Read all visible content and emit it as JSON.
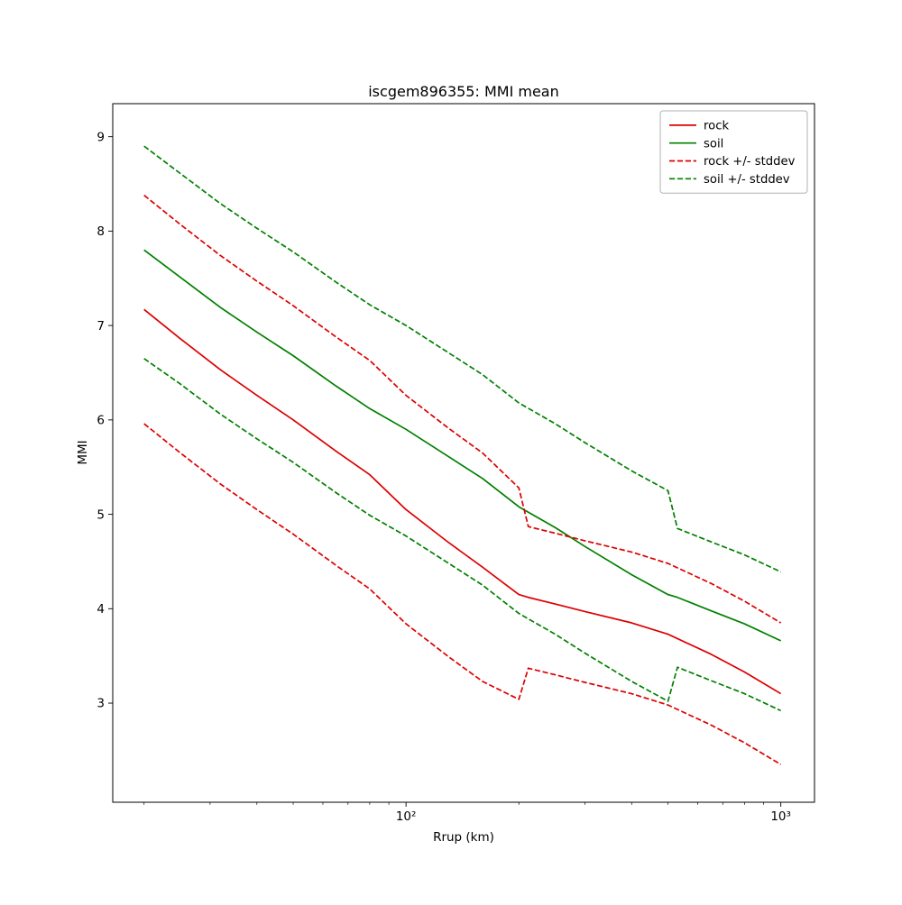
{
  "chart_data": {
    "type": "line",
    "title": "iscgem896355: MMI mean",
    "xlabel": "Rrup (km)",
    "ylabel": "MMI",
    "x_scale": "log",
    "y_scale": "linear",
    "xlim": [
      16.5,
      1230
    ],
    "ylim": [
      1.95,
      9.35
    ],
    "y_ticks": [
      3,
      4,
      5,
      6,
      7,
      8,
      9
    ],
    "x_ticks": [
      {
        "value": 100,
        "label": "10²"
      },
      {
        "value": 1000,
        "label": "10³"
      }
    ],
    "x_minor_ticks": [
      20,
      30,
      40,
      50,
      60,
      70,
      80,
      90,
      200,
      300,
      400,
      500,
      600,
      700,
      800,
      900
    ],
    "grid": false,
    "colors": {
      "rock": "#dd0000",
      "soil": "#008000"
    },
    "legend": {
      "position": "upper right",
      "entries": [
        {
          "label": "rock",
          "color": "#dd0000",
          "dashed": false
        },
        {
          "label": "soil",
          "color": "#008000",
          "dashed": false
        },
        {
          "label": "rock +/- stddev",
          "color": "#dd0000",
          "dashed": true
        },
        {
          "label": "soil +/- stddev",
          "color": "#008000",
          "dashed": true
        }
      ]
    },
    "series": [
      {
        "name": "rock",
        "color": "#dd0000",
        "dashed": false,
        "x": [
          20,
          25,
          32,
          40,
          50,
          65,
          80,
          100,
          130,
          160,
          200,
          212,
          250,
          300,
          400,
          500,
          650,
          800,
          1000
        ],
        "y": [
          7.17,
          6.86,
          6.53,
          6.26,
          6.0,
          5.67,
          5.42,
          5.05,
          4.7,
          4.44,
          4.15,
          4.12,
          4.05,
          3.97,
          3.85,
          3.73,
          3.52,
          3.33,
          3.1
        ]
      },
      {
        "name": "soil",
        "color": "#008000",
        "dashed": false,
        "x": [
          20,
          25,
          32,
          40,
          50,
          65,
          80,
          100,
          130,
          160,
          200,
          250,
          300,
          400,
          500,
          530,
          650,
          800,
          1000
        ],
        "y": [
          7.8,
          7.51,
          7.19,
          6.93,
          6.68,
          6.36,
          6.12,
          5.9,
          5.61,
          5.38,
          5.08,
          4.86,
          4.66,
          4.36,
          4.15,
          4.12,
          3.98,
          3.84,
          3.66
        ]
      },
      {
        "name": "rock plus stddev",
        "color": "#dd0000",
        "dashed": true,
        "x": [
          20,
          25,
          32,
          40,
          50,
          65,
          80,
          100,
          130,
          160,
          200,
          212,
          250,
          300,
          400,
          500,
          650,
          800,
          1000
        ],
        "y": [
          8.38,
          8.07,
          7.74,
          7.47,
          7.21,
          6.88,
          6.63,
          6.26,
          5.91,
          5.65,
          5.28,
          4.87,
          4.8,
          4.72,
          4.6,
          4.48,
          4.27,
          4.08,
          3.85
        ]
      },
      {
        "name": "rock minus stddev",
        "color": "#dd0000",
        "dashed": true,
        "x": [
          20,
          25,
          32,
          40,
          50,
          65,
          80,
          100,
          130,
          160,
          200,
          212,
          250,
          300,
          400,
          500,
          650,
          800,
          1000
        ],
        "y": [
          5.96,
          5.65,
          5.32,
          5.05,
          4.79,
          4.46,
          4.21,
          3.84,
          3.49,
          3.23,
          3.04,
          3.37,
          3.3,
          3.22,
          3.1,
          2.98,
          2.77,
          2.58,
          2.35
        ]
      },
      {
        "name": "soil plus stddev",
        "color": "#008000",
        "dashed": true,
        "x": [
          20,
          25,
          32,
          40,
          50,
          65,
          80,
          100,
          130,
          160,
          200,
          250,
          300,
          400,
          500,
          530,
          650,
          800,
          1000
        ],
        "y": [
          8.9,
          8.61,
          8.29,
          8.03,
          7.78,
          7.46,
          7.22,
          7.0,
          6.71,
          6.48,
          6.18,
          5.96,
          5.76,
          5.46,
          5.25,
          4.85,
          4.71,
          4.57,
          4.39
        ]
      },
      {
        "name": "soil minus stddev",
        "color": "#008000",
        "dashed": true,
        "x": [
          20,
          25,
          32,
          40,
          50,
          65,
          80,
          100,
          130,
          160,
          200,
          250,
          300,
          400,
          500,
          530,
          650,
          800,
          1000
        ],
        "y": [
          6.65,
          6.38,
          6.06,
          5.8,
          5.55,
          5.23,
          4.99,
          4.77,
          4.48,
          4.25,
          3.95,
          3.73,
          3.53,
          3.23,
          3.02,
          3.38,
          3.24,
          3.1,
          2.92
        ]
      }
    ]
  }
}
